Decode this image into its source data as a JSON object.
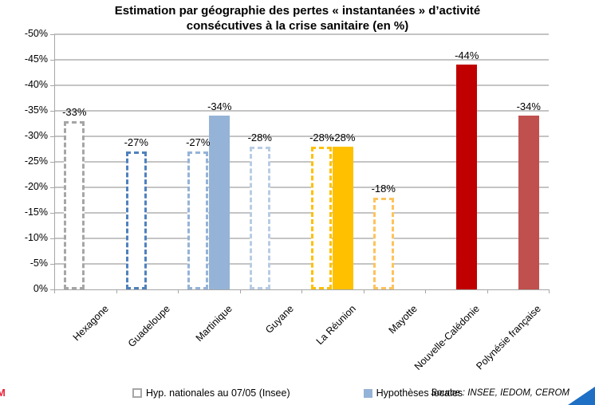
{
  "title": {
    "line1": "Estimation par géographie des pertes « instantanées » d’activité",
    "line2": "consécutives à la crise sanitaire (en %)"
  },
  "chart_data": {
    "type": "bar",
    "title": "Estimation par géographie des pertes « instantanées » d’activité consécutives à la crise sanitaire (en %)",
    "categories": [
      "Hexagone",
      "Guadeloupe",
      "Martinique",
      "Guyane",
      "La Réunion",
      "Mayotte",
      "Nouvelle-Calédonie",
      "Polynésie française"
    ],
    "series": [
      {
        "name": "Hyp. nationales au 07/05 (Insee)",
        "style": "dashed",
        "values": [
          -33,
          -27,
          -27,
          -28,
          -28,
          -18,
          null,
          null
        ],
        "colors": [
          "#a6a6a6",
          "#4f81bd",
          "#95b3d7",
          "#b8cce4",
          "#ffc000",
          "#fdc35c",
          null,
          null
        ]
      },
      {
        "name": "Hypothèses locales",
        "style": "solid",
        "values": [
          null,
          null,
          -34,
          null,
          -28,
          null,
          -44,
          -34
        ],
        "colors": [
          null,
          null,
          "#95b3d7",
          null,
          "#ffc000",
          null,
          "#c00000",
          "#c0504d"
        ]
      }
    ],
    "ylim": [
      0,
      -50
    ],
    "yticks": [
      "-50%",
      "-45%",
      "-40%",
      "-35%",
      "-30%",
      "-25%",
      "-20%",
      "-15%",
      "-10%",
      "-5%",
      "0%"
    ],
    "grid": true,
    "legend_position": "bottom",
    "data_label_format": "{value}%"
  },
  "legend": {
    "items": [
      {
        "label": "Hyp. nationales au 07/05 (Insee)",
        "swatch": "dashed",
        "color": "#a6a6a6"
      },
      {
        "label": "Hypothèses locales",
        "swatch": "solid",
        "color": "#95b3d7"
      }
    ]
  },
  "source": "Source : INSEE, IEDOM, CEROM",
  "watermark": "M",
  "colors": {
    "gridline": "#c4c4c4",
    "axis": "#a6a6a6",
    "corner_triangle": "#1f6fc5",
    "watermark": "#e8243c",
    "background": "#ffffff"
  }
}
